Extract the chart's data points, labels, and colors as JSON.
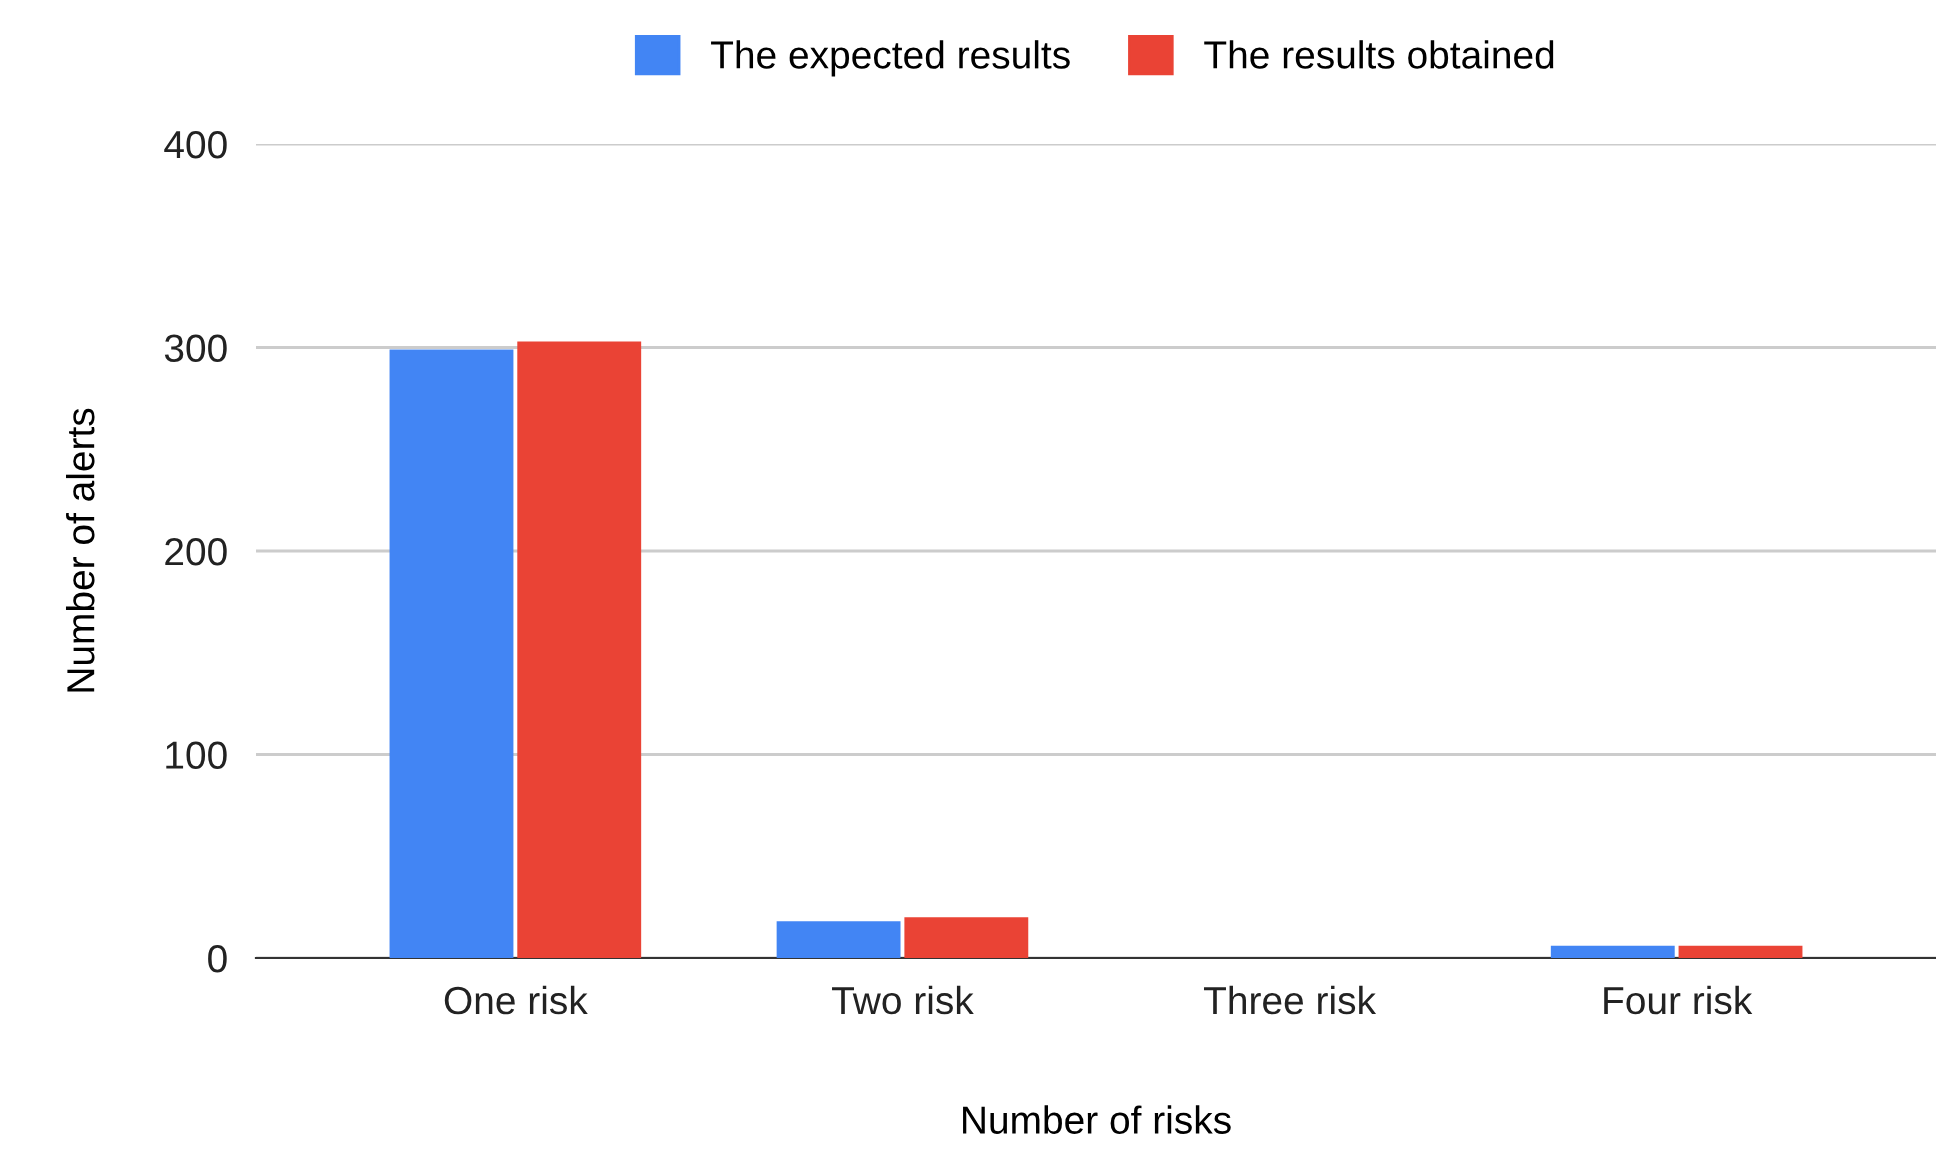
{
  "chart_data": {
    "type": "bar",
    "xlabel": "Number of risks",
    "ylabel": "Number of alerts",
    "categories": [
      "One risk",
      "Two risk",
      "Three risk",
      "Four risk"
    ],
    "series": [
      {
        "name": "The expected results",
        "color": "#4285f4",
        "values": [
          299,
          18,
          0,
          6
        ]
      },
      {
        "name": "The results obtained",
        "color": "#ea4335",
        "values": [
          303,
          20,
          0,
          6
        ]
      }
    ],
    "ylim": [
      0,
      400
    ],
    "yticks": [
      0,
      100,
      200,
      300,
      400
    ],
    "grid": "y",
    "legend": "top"
  }
}
